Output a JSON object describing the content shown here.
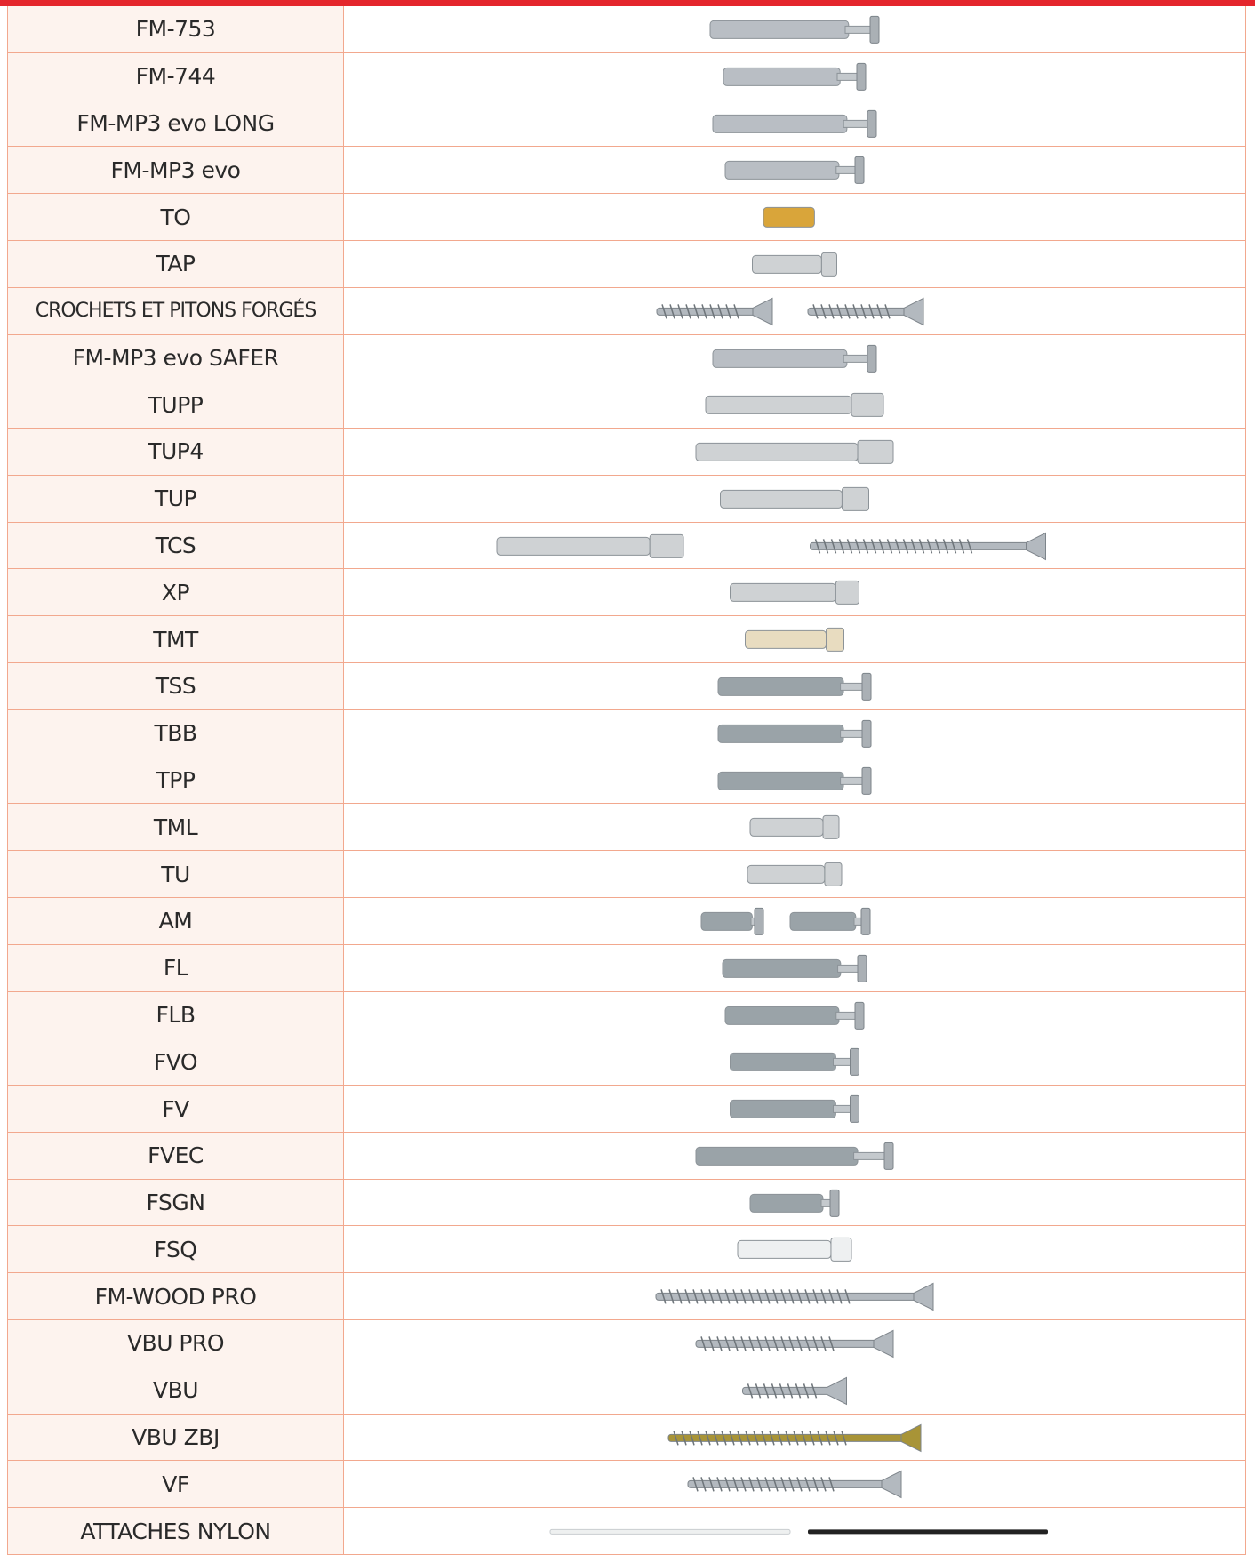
{
  "table": {
    "rows": [
      "FM-753",
      "FM-744",
      "FM-MP3 evo LONG",
      "FM-MP3 evo",
      "TO",
      "TAP",
      "CROCHETS ET PITONS FORGÉS",
      "FM-MP3 evo SAFER",
      "TUPP",
      "TUP4",
      "TUP",
      "TCS",
      "XP",
      "TMT",
      "TSS",
      "TBB",
      "TPP",
      "TML",
      "TU",
      "AM",
      "FL",
      "FLB",
      "FVO",
      "FV",
      "FVEC",
      "FSGN",
      "FSQ",
      "FM-WOOD PRO",
      "VBU PRO",
      "VBU",
      "VBU ZBJ",
      "VF",
      "ATTACHES NYLON"
    ]
  }
}
